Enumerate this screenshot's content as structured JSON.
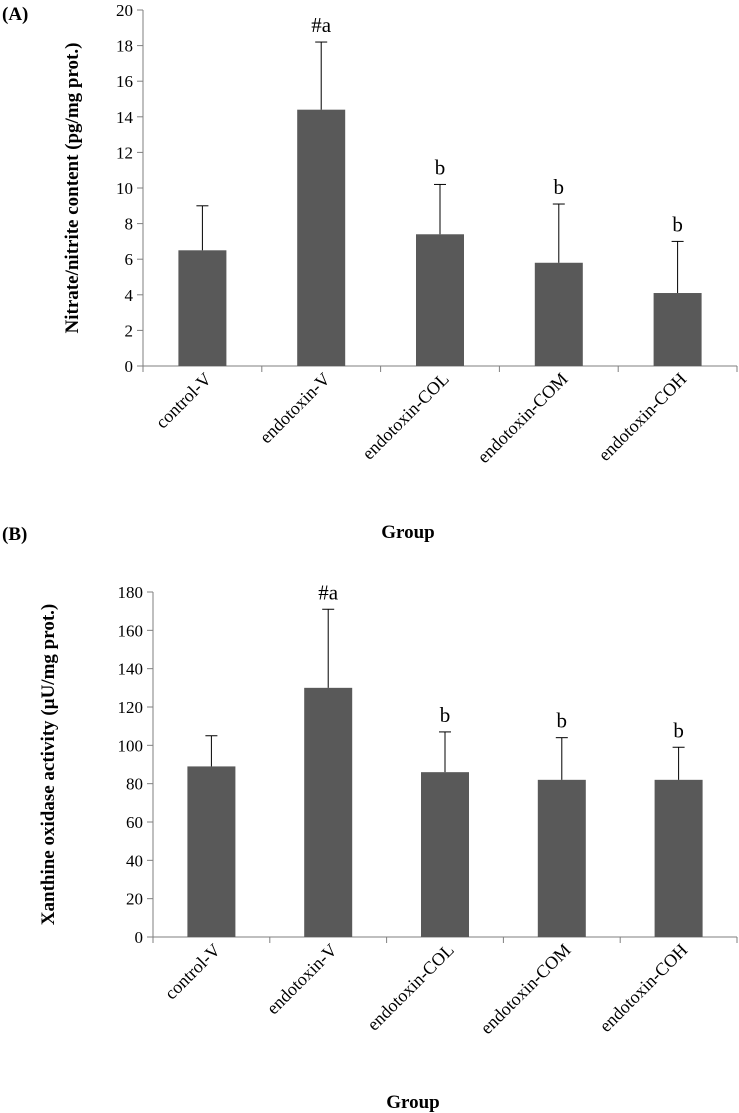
{
  "chart_data": [
    {
      "type": "bar",
      "panel_label": "(A)",
      "categories": [
        "control-V",
        "endotoxin-V",
        "endotoxin-COL",
        "endotoxin-COM",
        "endotoxin-COH"
      ],
      "values": [
        6.5,
        14.4,
        7.4,
        5.8,
        4.1
      ],
      "error": [
        2.5,
        3.8,
        2.8,
        3.3,
        2.9
      ],
      "annotations": [
        "",
        "#a",
        "b",
        "b",
        "b"
      ],
      "xlabel": "Group",
      "ylabel": "Nitrate/nitrite content (pg/mg prot.)",
      "ylim": [
        0,
        20
      ],
      "yticks": [
        0,
        2,
        4,
        6,
        8,
        10,
        12,
        14,
        16,
        18,
        20
      ],
      "grid": false,
      "bar_color": "#595959"
    },
    {
      "type": "bar",
      "panel_label": "(B)",
      "categories": [
        "control-V",
        "endotoxin-V",
        "endotoxin-COL",
        "endotoxin-COM",
        "endotoxin-COH"
      ],
      "values": [
        89,
        130,
        86,
        82,
        82
      ],
      "error": [
        16,
        41,
        21,
        22,
        17
      ],
      "annotations": [
        "",
        "#a",
        "b",
        "b",
        "b"
      ],
      "xlabel": "Group",
      "ylabel": "Xanthine oxidase activity (µU/mg prot.)",
      "ylim": [
        0,
        180
      ],
      "yticks": [
        0,
        20,
        40,
        60,
        80,
        100,
        120,
        140,
        160,
        180
      ],
      "grid": false,
      "bar_color": "#595959"
    }
  ]
}
